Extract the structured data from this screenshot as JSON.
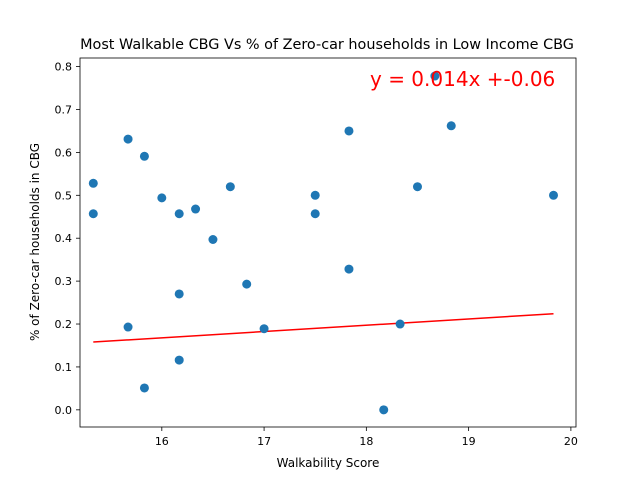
{
  "chart_data": {
    "type": "scatter",
    "title": "Most Walkable CBG Vs % of Zero-car households in Low Income CBG",
    "xlabel": "Walkability Score",
    "ylabel": "% of Zero-car households in CBG",
    "xlim": [
      15.2,
      20.05
    ],
    "ylim": [
      -0.04,
      0.82
    ],
    "xticks": [
      16,
      17,
      18,
      19,
      20
    ],
    "yticks": [
      0.0,
      0.1,
      0.2,
      0.3,
      0.4,
      0.5,
      0.6,
      0.7,
      0.8
    ],
    "xtick_labels": [
      "16",
      "17",
      "18",
      "19",
      "20"
    ],
    "ytick_labels": [
      "0.0",
      "0.1",
      "0.2",
      "0.3",
      "0.4",
      "0.5",
      "0.6",
      "0.7",
      "0.8"
    ],
    "grid": false,
    "points": [
      {
        "x": 15.33,
        "y": 0.528
      },
      {
        "x": 15.33,
        "y": 0.457
      },
      {
        "x": 15.67,
        "y": 0.631
      },
      {
        "x": 15.67,
        "y": 0.193
      },
      {
        "x": 15.83,
        "y": 0.591
      },
      {
        "x": 15.83,
        "y": 0.051
      },
      {
        "x": 16.0,
        "y": 0.494
      },
      {
        "x": 16.17,
        "y": 0.457
      },
      {
        "x": 16.17,
        "y": 0.27
      },
      {
        "x": 16.17,
        "y": 0.116
      },
      {
        "x": 16.33,
        "y": 0.468
      },
      {
        "x": 16.5,
        "y": 0.397
      },
      {
        "x": 16.67,
        "y": 0.52
      },
      {
        "x": 16.83,
        "y": 0.293
      },
      {
        "x": 17.0,
        "y": 0.189
      },
      {
        "x": 17.5,
        "y": 0.5
      },
      {
        "x": 17.5,
        "y": 0.457
      },
      {
        "x": 17.83,
        "y": 0.65
      },
      {
        "x": 17.83,
        "y": 0.328
      },
      {
        "x": 18.17,
        "y": 0.0
      },
      {
        "x": 18.33,
        "y": 0.2
      },
      {
        "x": 18.5,
        "y": 0.52
      },
      {
        "x": 18.67,
        "y": 0.778
      },
      {
        "x": 18.83,
        "y": 0.662
      },
      {
        "x": 19.83,
        "y": 0.5
      }
    ],
    "fit_line": {
      "x": [
        15.33,
        19.83
      ],
      "y": [
        0.158,
        0.224
      ]
    },
    "annotation": "y = 0.014x +-0.06",
    "colors": {
      "points": "#1f77b4",
      "fit_line": "#ff0000",
      "annotation": "#ff0000"
    }
  }
}
